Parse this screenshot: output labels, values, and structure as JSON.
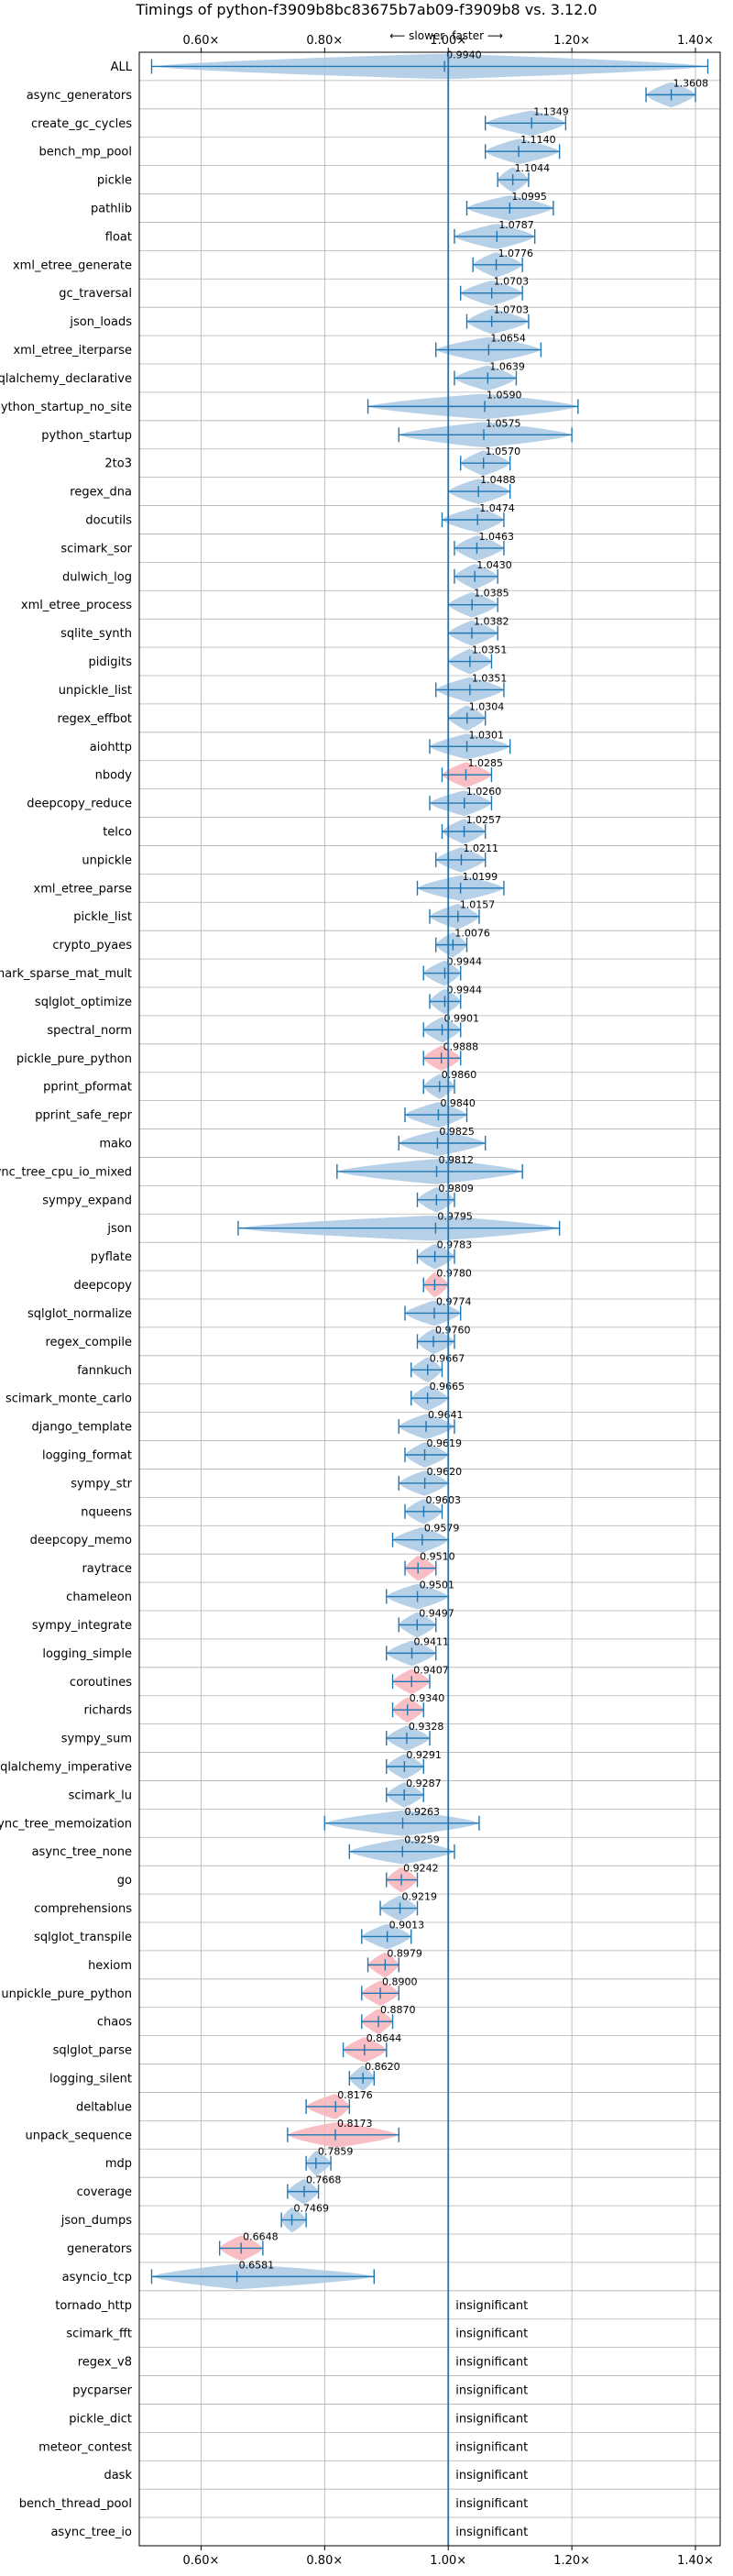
{
  "chart_data": {
    "type": "violin",
    "title": "Timings of python-f3909b8bc83675b7ab09-f3909b8 vs. 3.12.0",
    "direction_labels": {
      "slower": "⟵ slower",
      "faster": "faster ⟶"
    },
    "xlim": [
      0.5,
      1.44
    ],
    "reference_x": 1.0,
    "x_ticks": [
      {
        "value": 0.6,
        "label": "0.60×"
      },
      {
        "value": 0.8,
        "label": "0.80×"
      },
      {
        "value": 1.0,
        "label": "1.00×"
      },
      {
        "value": 1.2,
        "label": "1.20×"
      },
      {
        "value": 1.4,
        "label": "1.40×"
      }
    ],
    "grid": true,
    "insignificant_text": "insignificant",
    "colors": {
      "faster": "#a9c8e4",
      "slower": "#f7b3b8",
      "line": "#1f77b4",
      "grid": "#b0b0b0"
    },
    "benchmarks": [
      {
        "name": "ALL",
        "value": 0.994,
        "label": "0.9940",
        "lo": 0.52,
        "hi": 1.42
      },
      {
        "name": "async_generators",
        "value": 1.3608,
        "label": "1.3608",
        "lo": 1.32,
        "hi": 1.4
      },
      {
        "name": "create_gc_cycles",
        "value": 1.1349,
        "label": "1.1349",
        "lo": 1.06,
        "hi": 1.19
      },
      {
        "name": "bench_mp_pool",
        "value": 1.114,
        "label": "1.1140",
        "lo": 1.06,
        "hi": 1.18
      },
      {
        "name": "pickle",
        "value": 1.1044,
        "label": "1.1044",
        "lo": 1.08,
        "hi": 1.13
      },
      {
        "name": "pathlib",
        "value": 1.0995,
        "label": "1.0995",
        "lo": 1.03,
        "hi": 1.17
      },
      {
        "name": "float",
        "value": 1.0787,
        "label": "1.0787",
        "lo": 1.01,
        "hi": 1.14
      },
      {
        "name": "xml_etree_generate",
        "value": 1.0776,
        "label": "1.0776",
        "lo": 1.04,
        "hi": 1.12
      },
      {
        "name": "gc_traversal",
        "value": 1.0703,
        "label": "1.0703",
        "lo": 1.02,
        "hi": 1.12
      },
      {
        "name": "json_loads",
        "value": 1.0703,
        "label": "1.0703",
        "lo": 1.03,
        "hi": 1.13
      },
      {
        "name": "xml_etree_iterparse",
        "value": 1.0654,
        "label": "1.0654",
        "lo": 0.98,
        "hi": 1.15
      },
      {
        "name": "sqlalchemy_declarative",
        "value": 1.0639,
        "label": "1.0639",
        "lo": 1.01,
        "hi": 1.11
      },
      {
        "name": "python_startup_no_site",
        "value": 1.059,
        "label": "1.0590",
        "lo": 0.87,
        "hi": 1.21
      },
      {
        "name": "python_startup",
        "value": 1.0575,
        "label": "1.0575",
        "lo": 0.92,
        "hi": 1.2
      },
      {
        "name": "2to3",
        "value": 1.057,
        "label": "1.0570",
        "lo": 1.02,
        "hi": 1.1
      },
      {
        "name": "regex_dna",
        "value": 1.0488,
        "label": "1.0488",
        "lo": 1.0,
        "hi": 1.1
      },
      {
        "name": "docutils",
        "value": 1.0474,
        "label": "1.0474",
        "lo": 0.99,
        "hi": 1.09
      },
      {
        "name": "scimark_sor",
        "value": 1.0463,
        "label": "1.0463",
        "lo": 1.01,
        "hi": 1.09
      },
      {
        "name": "dulwich_log",
        "value": 1.043,
        "label": "1.0430",
        "lo": 1.01,
        "hi": 1.08
      },
      {
        "name": "xml_etree_process",
        "value": 1.0385,
        "label": "1.0385",
        "lo": 1.0,
        "hi": 1.08
      },
      {
        "name": "sqlite_synth",
        "value": 1.0382,
        "label": "1.0382",
        "lo": 1.0,
        "hi": 1.08
      },
      {
        "name": "pidigits",
        "value": 1.0351,
        "label": "1.0351",
        "lo": 1.0,
        "hi": 1.07
      },
      {
        "name": "unpickle_list",
        "value": 1.0351,
        "label": "1.0351",
        "lo": 0.98,
        "hi": 1.09
      },
      {
        "name": "regex_effbot",
        "value": 1.0304,
        "label": "1.0304",
        "lo": 1.0,
        "hi": 1.06
      },
      {
        "name": "aiohttp",
        "value": 1.0301,
        "label": "1.0301",
        "lo": 0.97,
        "hi": 1.1
      },
      {
        "name": "nbody",
        "value": 1.0285,
        "label": "1.0285",
        "lo": 0.99,
        "hi": 1.07
      },
      {
        "name": "deepcopy_reduce",
        "value": 1.026,
        "label": "1.0260",
        "lo": 0.97,
        "hi": 1.07
      },
      {
        "name": "telco",
        "value": 1.0257,
        "label": "1.0257",
        "lo": 0.99,
        "hi": 1.06
      },
      {
        "name": "unpickle",
        "value": 1.0211,
        "label": "1.0211",
        "lo": 0.98,
        "hi": 1.06
      },
      {
        "name": "xml_etree_parse",
        "value": 1.0199,
        "label": "1.0199",
        "lo": 0.95,
        "hi": 1.09
      },
      {
        "name": "pickle_list",
        "value": 1.0157,
        "label": "1.0157",
        "lo": 0.97,
        "hi": 1.05
      },
      {
        "name": "crypto_pyaes",
        "value": 1.0076,
        "label": "1.0076",
        "lo": 0.98,
        "hi": 1.03
      },
      {
        "name": "scimark_sparse_mat_mult",
        "value": 0.9944,
        "label": "0.9944",
        "lo": 0.96,
        "hi": 1.02
      },
      {
        "name": "sqlglot_optimize",
        "value": 0.9944,
        "label": "0.9944",
        "lo": 0.97,
        "hi": 1.02
      },
      {
        "name": "spectral_norm",
        "value": 0.9901,
        "label": "0.9901",
        "lo": 0.96,
        "hi": 1.02
      },
      {
        "name": "pickle_pure_python",
        "value": 0.9888,
        "label": "0.9888",
        "lo": 0.96,
        "hi": 1.02
      },
      {
        "name": "pprint_pformat",
        "value": 0.986,
        "label": "0.9860",
        "lo": 0.96,
        "hi": 1.01
      },
      {
        "name": "pprint_safe_repr",
        "value": 0.984,
        "label": "0.9840",
        "lo": 0.93,
        "hi": 1.03
      },
      {
        "name": "mako",
        "value": 0.9825,
        "label": "0.9825",
        "lo": 0.92,
        "hi": 1.06
      },
      {
        "name": "async_tree_cpu_io_mixed",
        "value": 0.9812,
        "label": "0.9812",
        "lo": 0.82,
        "hi": 1.12
      },
      {
        "name": "sympy_expand",
        "value": 0.9809,
        "label": "0.9809",
        "lo": 0.95,
        "hi": 1.01
      },
      {
        "name": "json",
        "value": 0.9795,
        "label": "0.9795",
        "lo": 0.66,
        "hi": 1.18
      },
      {
        "name": "pyflate",
        "value": 0.9783,
        "label": "0.9783",
        "lo": 0.95,
        "hi": 1.01
      },
      {
        "name": "deepcopy",
        "value": 0.978,
        "label": "0.9780",
        "lo": 0.96,
        "hi": 1.0
      },
      {
        "name": "sqlglot_normalize",
        "value": 0.9774,
        "label": "0.9774",
        "lo": 0.93,
        "hi": 1.02
      },
      {
        "name": "regex_compile",
        "value": 0.976,
        "label": "0.9760",
        "lo": 0.95,
        "hi": 1.01
      },
      {
        "name": "fannkuch",
        "value": 0.9667,
        "label": "0.9667",
        "lo": 0.94,
        "hi": 0.99
      },
      {
        "name": "scimark_monte_carlo",
        "value": 0.9665,
        "label": "0.9665",
        "lo": 0.94,
        "hi": 1.0
      },
      {
        "name": "django_template",
        "value": 0.9641,
        "label": "0.9641",
        "lo": 0.92,
        "hi": 1.01
      },
      {
        "name": "logging_format",
        "value": 0.9619,
        "label": "0.9619",
        "lo": 0.93,
        "hi": 1.0
      },
      {
        "name": "sympy_str",
        "value": 0.962,
        "label": "0.9620",
        "lo": 0.92,
        "hi": 1.0
      },
      {
        "name": "nqueens",
        "value": 0.9603,
        "label": "0.9603",
        "lo": 0.93,
        "hi": 0.99
      },
      {
        "name": "deepcopy_memo",
        "value": 0.9579,
        "label": "0.9579",
        "lo": 0.91,
        "hi": 1.0
      },
      {
        "name": "raytrace",
        "value": 0.951,
        "label": "0.9510",
        "lo": 0.93,
        "hi": 0.98
      },
      {
        "name": "chameleon",
        "value": 0.9501,
        "label": "0.9501",
        "lo": 0.9,
        "hi": 1.0
      },
      {
        "name": "sympy_integrate",
        "value": 0.9497,
        "label": "0.9497",
        "lo": 0.92,
        "hi": 0.98
      },
      {
        "name": "logging_simple",
        "value": 0.9411,
        "label": "0.9411",
        "lo": 0.9,
        "hi": 0.98
      },
      {
        "name": "coroutines",
        "value": 0.9407,
        "label": "0.9407",
        "lo": 0.91,
        "hi": 0.97
      },
      {
        "name": "richards",
        "value": 0.934,
        "label": "0.9340",
        "lo": 0.91,
        "hi": 0.96
      },
      {
        "name": "sympy_sum",
        "value": 0.9328,
        "label": "0.9328",
        "lo": 0.9,
        "hi": 0.97
      },
      {
        "name": "sqlalchemy_imperative",
        "value": 0.9291,
        "label": "0.9291",
        "lo": 0.9,
        "hi": 0.96
      },
      {
        "name": "scimark_lu",
        "value": 0.9287,
        "label": "0.9287",
        "lo": 0.9,
        "hi": 0.96
      },
      {
        "name": "async_tree_memoization",
        "value": 0.9263,
        "label": "0.9263",
        "lo": 0.8,
        "hi": 1.05
      },
      {
        "name": "async_tree_none",
        "value": 0.9259,
        "label": "0.9259",
        "lo": 0.84,
        "hi": 1.01
      },
      {
        "name": "go",
        "value": 0.9242,
        "label": "0.9242",
        "lo": 0.9,
        "hi": 0.95
      },
      {
        "name": "comprehensions",
        "value": 0.9219,
        "label": "0.9219",
        "lo": 0.89,
        "hi": 0.95
      },
      {
        "name": "sqlglot_transpile",
        "value": 0.9013,
        "label": "0.9013",
        "lo": 0.86,
        "hi": 0.94
      },
      {
        "name": "hexiom",
        "value": 0.8979,
        "label": "0.8979",
        "lo": 0.87,
        "hi": 0.92
      },
      {
        "name": "unpickle_pure_python",
        "value": 0.89,
        "label": "0.8900",
        "lo": 0.86,
        "hi": 0.92
      },
      {
        "name": "chaos",
        "value": 0.887,
        "label": "0.8870",
        "lo": 0.86,
        "hi": 0.91
      },
      {
        "name": "sqlglot_parse",
        "value": 0.8644,
        "label": "0.8644",
        "lo": 0.83,
        "hi": 0.9
      },
      {
        "name": "logging_silent",
        "value": 0.862,
        "label": "0.8620",
        "lo": 0.84,
        "hi": 0.88
      },
      {
        "name": "deltablue",
        "value": 0.8176,
        "label": "0.8176",
        "lo": 0.77,
        "hi": 0.84
      },
      {
        "name": "unpack_sequence",
        "value": 0.8173,
        "label": "0.8173",
        "lo": 0.74,
        "hi": 0.92
      },
      {
        "name": "mdp",
        "value": 0.7859,
        "label": "0.7859",
        "lo": 0.77,
        "hi": 0.81
      },
      {
        "name": "coverage",
        "value": 0.7668,
        "label": "0.7668",
        "lo": 0.74,
        "hi": 0.79
      },
      {
        "name": "json_dumps",
        "value": 0.7469,
        "label": "0.7469",
        "lo": 0.73,
        "hi": 0.77
      },
      {
        "name": "generators",
        "value": 0.6648,
        "label": "0.6648",
        "lo": 0.63,
        "hi": 0.7
      },
      {
        "name": "asyncio_tcp",
        "value": 0.6581,
        "label": "0.6581",
        "lo": 0.52,
        "hi": 0.88
      },
      {
        "name": "tornado_http",
        "value": null,
        "label": "",
        "lo": null,
        "hi": null
      },
      {
        "name": "scimark_fft",
        "value": null,
        "label": "",
        "lo": null,
        "hi": null
      },
      {
        "name": "regex_v8",
        "value": null,
        "label": "",
        "lo": null,
        "hi": null
      },
      {
        "name": "pycparser",
        "value": null,
        "label": "",
        "lo": null,
        "hi": null
      },
      {
        "name": "pickle_dict",
        "value": null,
        "label": "",
        "lo": null,
        "hi": null
      },
      {
        "name": "meteor_contest",
        "value": null,
        "label": "",
        "lo": null,
        "hi": null
      },
      {
        "name": "dask",
        "value": null,
        "label": "",
        "lo": null,
        "hi": null
      },
      {
        "name": "bench_thread_pool",
        "value": null,
        "label": "",
        "lo": null,
        "hi": null
      },
      {
        "name": "async_tree_io",
        "value": null,
        "label": "",
        "lo": null,
        "hi": null
      }
    ],
    "slower_highlight": [
      "nbody",
      "pickle_pure_python",
      "deepcopy",
      "raytrace",
      "coroutines",
      "richards",
      "go",
      "hexiom",
      "unpickle_pure_python",
      "chaos",
      "sqlglot_parse",
      "deltablue",
      "unpack_sequence",
      "generators"
    ]
  }
}
